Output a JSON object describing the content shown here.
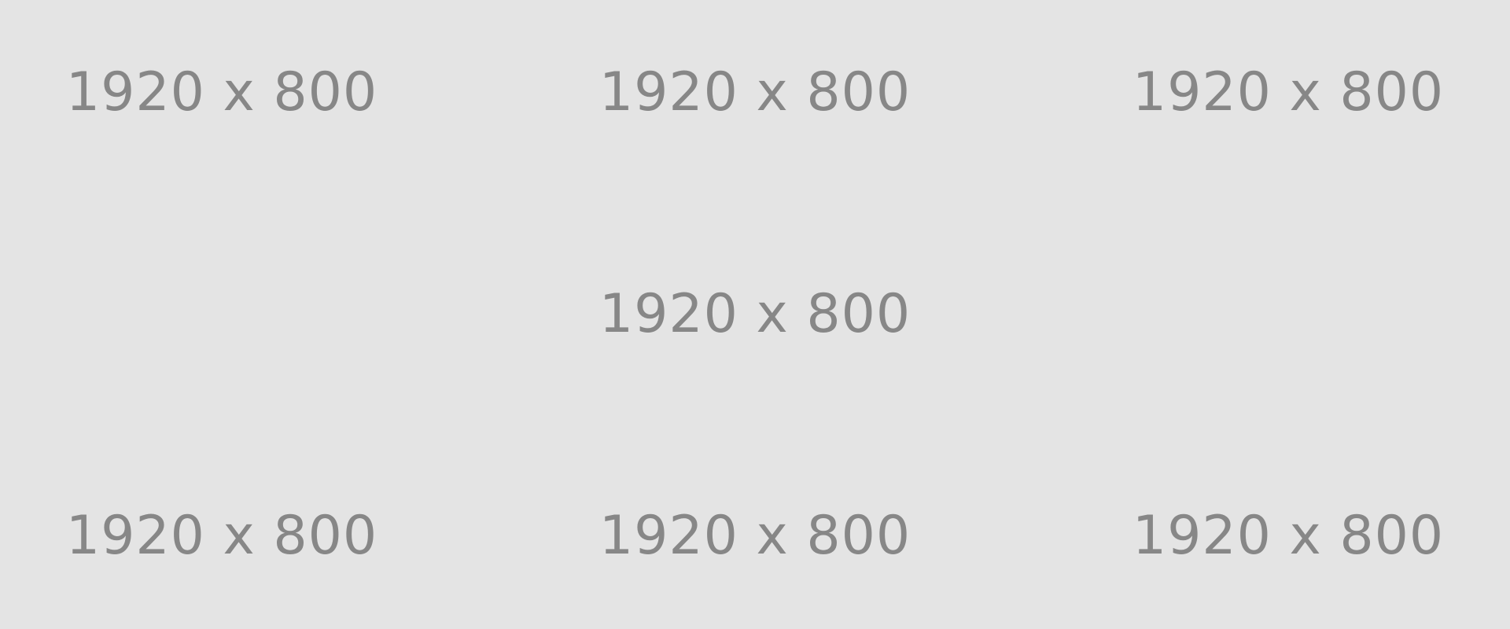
{
  "placeholder": {
    "background_color": "#e4e4e4",
    "text_color": "#878787",
    "labels": {
      "top_left": "1920 x 800",
      "top_center": "1920 x 800",
      "top_right": "1920 x 800",
      "middle_center": "1920 x 800",
      "bottom_left": "1920 x 800",
      "bottom_center": "1920 x 800",
      "bottom_right": "1920 x 800"
    }
  }
}
